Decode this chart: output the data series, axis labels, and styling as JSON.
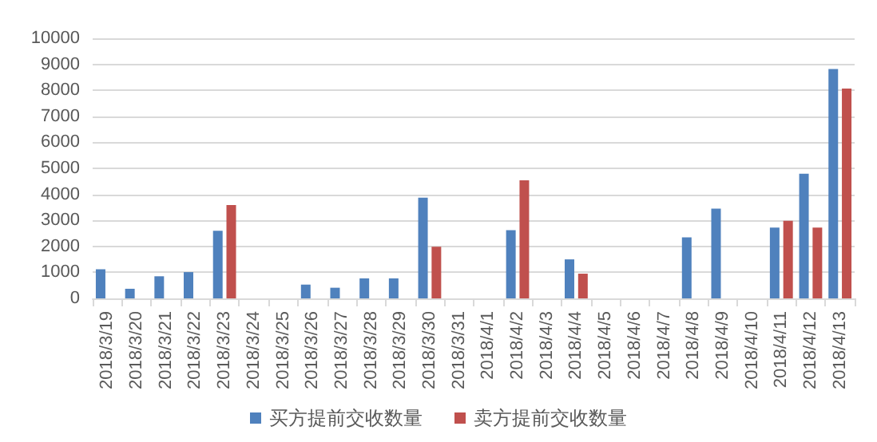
{
  "chart_data": {
    "type": "bar",
    "categories": [
      "2018/3/19",
      "2018/3/20",
      "2018/3/21",
      "2018/3/22",
      "2018/3/23",
      "2018/3/24",
      "2018/3/25",
      "2018/3/26",
      "2018/3/27",
      "2018/3/28",
      "2018/3/29",
      "2018/3/30",
      "2018/3/31",
      "2018/4/1",
      "2018/4/2",
      "2018/4/3",
      "2018/4/4",
      "2018/4/5",
      "2018/4/6",
      "2018/4/7",
      "2018/4/8",
      "2018/4/9",
      "2018/4/10",
      "2018/4/11",
      "2018/4/12",
      "2018/4/13"
    ],
    "series": [
      {
        "name": "买方提前交收数量",
        "color": "#4f81bd",
        "values": [
          1120,
          370,
          850,
          1010,
          2600,
          null,
          null,
          530,
          410,
          770,
          770,
          3870,
          null,
          null,
          2620,
          null,
          1500,
          null,
          null,
          null,
          2350,
          3450,
          null,
          2720,
          4790,
          8820
        ]
      },
      {
        "name": "卖方提前交收数量",
        "color": "#c0504d",
        "values": [
          null,
          null,
          null,
          null,
          3590,
          null,
          null,
          null,
          null,
          null,
          null,
          1990,
          null,
          null,
          4540,
          null,
          950,
          null,
          null,
          null,
          null,
          null,
          null,
          2980,
          2720,
          8070
        ]
      }
    ],
    "ylim": [
      0,
      10000
    ],
    "yticks": [
      0,
      1000,
      2000,
      3000,
      4000,
      5000,
      6000,
      7000,
      8000,
      9000,
      10000
    ],
    "grid": "y",
    "legend": "bottom"
  }
}
